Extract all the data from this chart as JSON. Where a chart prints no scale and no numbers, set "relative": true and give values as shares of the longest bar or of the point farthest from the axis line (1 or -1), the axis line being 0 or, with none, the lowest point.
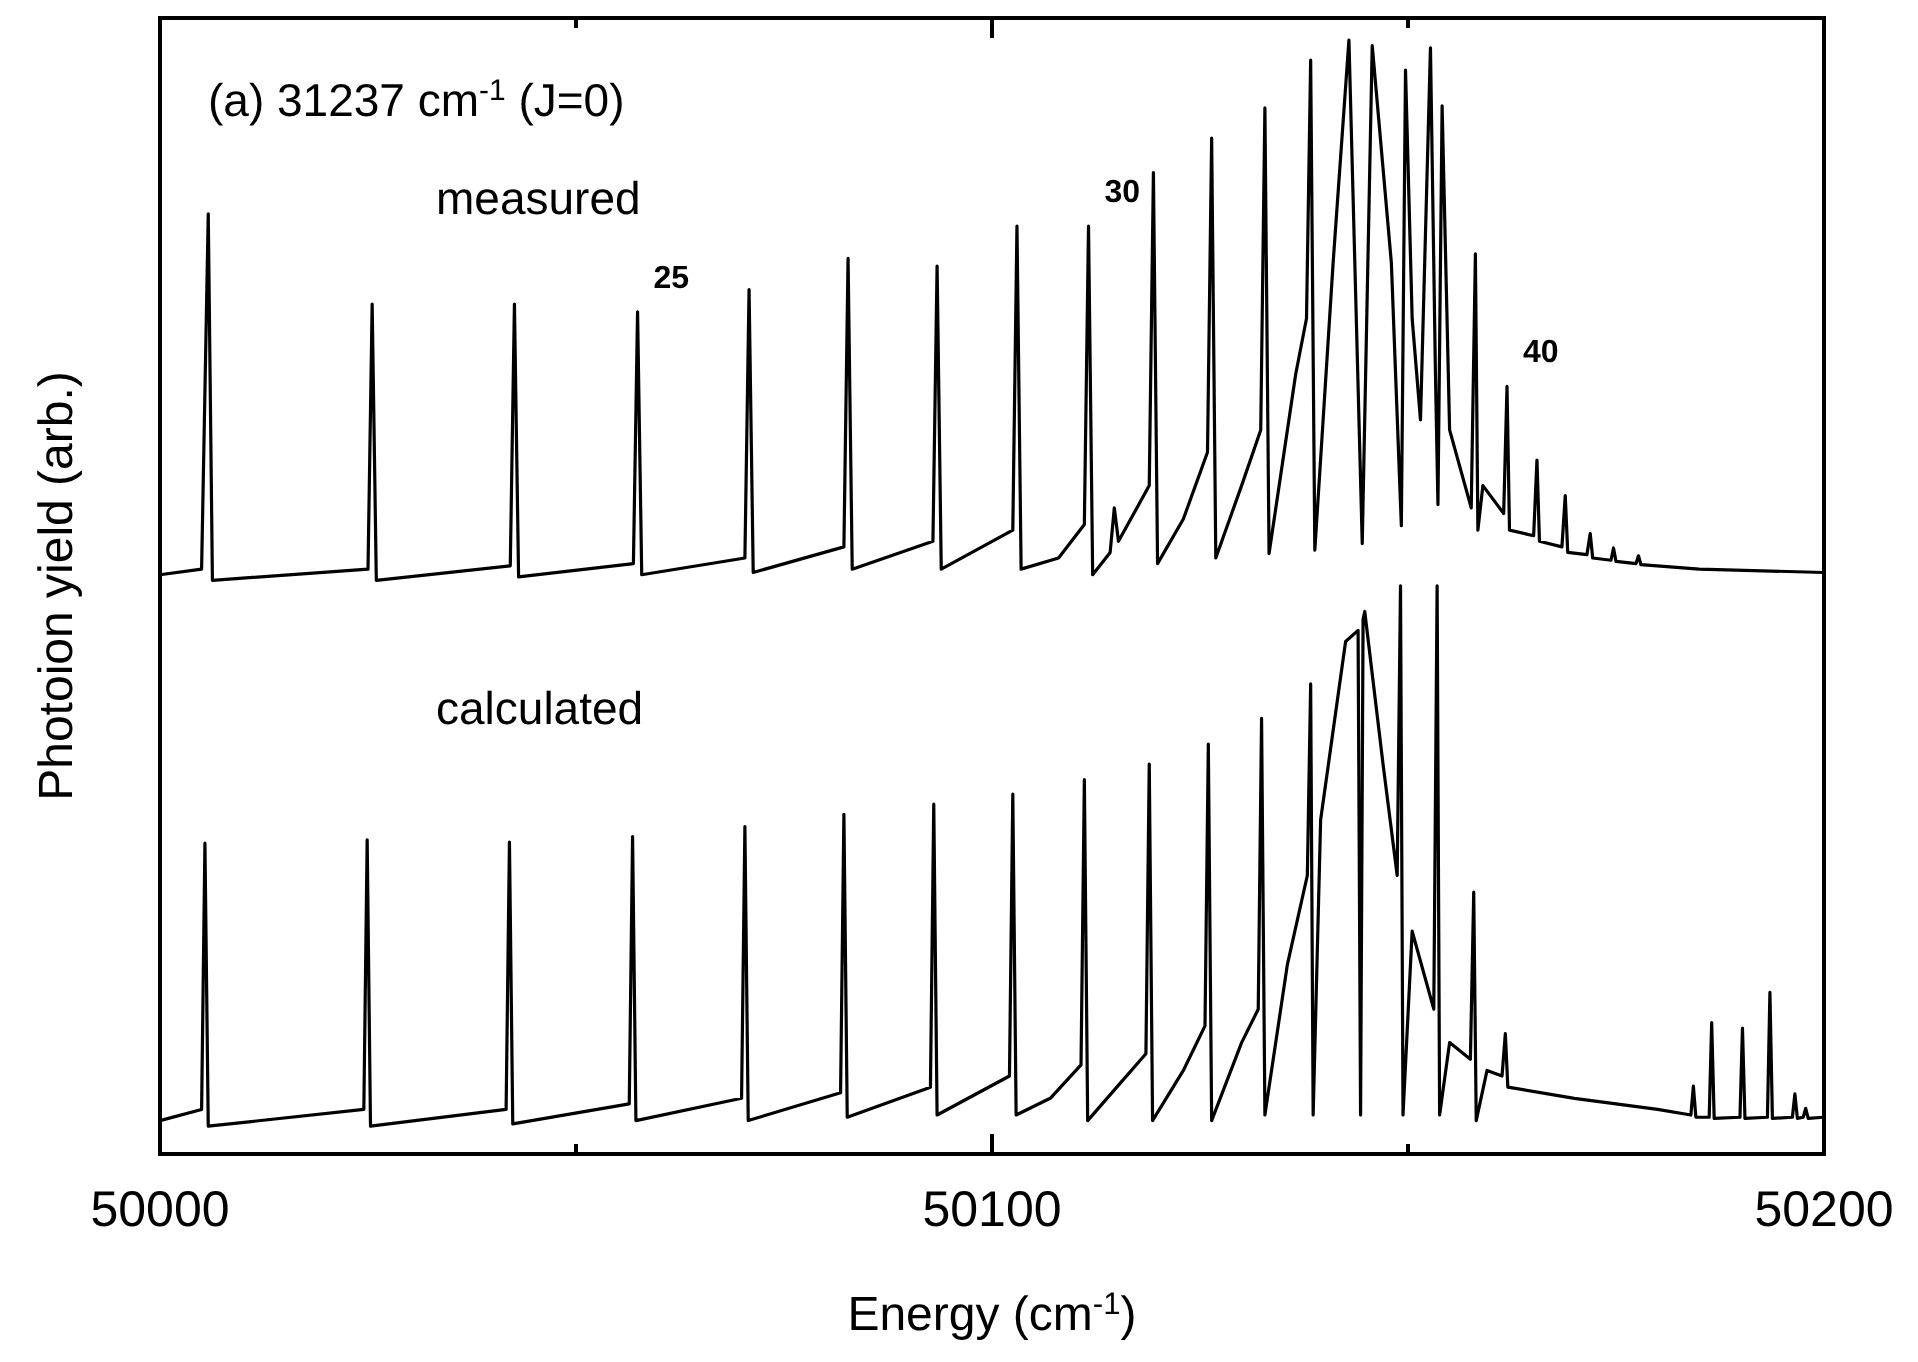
{
  "chart_data": {
    "type": "line",
    "relative": true,
    "xlabel": "Energy (cm$^{-1}$)",
    "ylabel": "Photoion yield (arb.)",
    "xlim": [
      50000,
      50200
    ],
    "xticks": [
      50000,
      {
        "value": 50050,
        "label": null
      },
      50100,
      {
        "value": 50150,
        "label": null
      },
      50200
    ],
    "grid": false,
    "line_style": "solid",
    "annotations": [
      "(a) 31237 cm$^{-1}$ (J=0)",
      {
        "text": "25",
        "x": 50057.4,
        "y": 0.756
      },
      {
        "text": "30",
        "x": 50111.6,
        "y": 0.833
      },
      {
        "text": "40",
        "x": 50161.9,
        "y": 0.689
      }
    ],
    "series": [
      {
        "name": "measured",
        "color": "#000000",
        "x": [
          50000,
          50005.0,
          50005.8,
          50006.3,
          50025.0,
          50025.5,
          50026.0,
          50042.1,
          50042.6,
          50043.1,
          50056.9,
          50057.4,
          50057.9,
          50070.3,
          50070.8,
          50071.3,
          50082.2,
          50082.7,
          50083.2,
          50092.9,
          50093.4,
          50093.9,
          50102.5,
          50103.0,
          50103.5,
          50108,
          50111.1,
          50111.6,
          50112.1,
          50114.2,
          50114.7,
          50115.2,
          50118.9,
          50119.4,
          50119.9,
          50123,
          50125.9,
          50126.4,
          50126.9,
          50130,
          50132.3,
          50132.8,
          50133.3,
          50136.5,
          50137.8,
          50138.3,
          50138.8,
          50141,
          50142.9,
          50144.5,
          50145.7,
          50148,
          50149.2,
          50149.7,
          50150.5,
          50151.5,
          50152.7,
          50153.3,
          50153.6,
          50154.1,
          50155,
          50157.6,
          50158.1,
          50158.4,
          50159,
          50161.5,
          50161.9,
          50162.2,
          50165.1,
          50165.5,
          50165.8,
          50168.5,
          50168.9,
          50169.2,
          50171.5,
          50171.9,
          50172.2,
          50174.4,
          50174.7,
          50175,
          50177.4,
          50177.7,
          50178,
          50185,
          50200
        ],
        "values": [
          0.52,
          0.525,
          0.844,
          0.515,
          0.525,
          0.763,
          0.515,
          0.528,
          0.763,
          0.518,
          0.53,
          0.756,
          0.52,
          0.535,
          0.776,
          0.522,
          0.545,
          0.804,
          0.525,
          0.55,
          0.797,
          0.525,
          0.56,
          0.833,
          0.525,
          0.535,
          0.565,
          0.833,
          0.52,
          0.54,
          0.58,
          0.55,
          0.6,
          0.881,
          0.53,
          0.57,
          0.63,
          0.912,
          0.535,
          0.6,
          0.65,
          0.939,
          0.539,
          0.7,
          0.75,
          0.982,
          0.542,
          0.8,
          1.0,
          0.548,
          0.995,
          0.8,
          0.564,
          0.973,
          0.75,
          0.659,
          0.993,
          0.7,
          0.583,
          0.941,
          0.65,
          0.58,
          0.808,
          0.56,
          0.6,
          0.575,
          0.689,
          0.56,
          0.555,
          0.623,
          0.55,
          0.545,
          0.591,
          0.54,
          0.538,
          0.557,
          0.535,
          0.533,
          0.544,
          0.532,
          0.53,
          0.537,
          0.529,
          0.525,
          0.522
        ]
      },
      {
        "name": "calculated",
        "color": "#000000",
        "x": [
          50000,
          50005.0,
          50005.4,
          50005.8,
          50024.5,
          50024.9,
          50025.3,
          50041.6,
          50042.0,
          50042.4,
          50056.4,
          50056.8,
          50057.2,
          50069.9,
          50070.3,
          50070.7,
          50081.8,
          50082.2,
          50082.6,
          50092.6,
          50093.0,
          50093.4,
          50102.1,
          50102.5,
          50102.9,
          50107,
          50110.7,
          50111.1,
          50111.5,
          50115,
          50118.5,
          50118.9,
          50119.3,
          50123,
          50125.6,
          50126.0,
          50126.4,
          50130,
          50132.0,
          50132.4,
          50132.8,
          50135.5,
          50137.9,
          50138.3,
          50138.6,
          50139.5,
          50142.5,
          50144.0,
          50144.3,
          50144.6,
          50144.8,
          50147,
          50148.7,
          50149.1,
          50149.4,
          50150.5,
          50153.1,
          50153.5,
          50153.8,
          50155,
          50157.5,
          50157.9,
          50158.2,
          50159.5,
          50161.3,
          50161.7,
          50162,
          50170,
          50180,
          50184,
          50184.3,
          50184.6,
          50186.2,
          50186.5,
          50186.8,
          50189.9,
          50190.2,
          50190.5,
          50193.2,
          50193.5,
          50193.8,
          50196.2,
          50196.5,
          50196.8,
          50197.5,
          50197.8,
          50198.1,
          50200
        ],
        "values": [
          0.03,
          0.04,
          0.279,
          0.025,
          0.04,
          0.282,
          0.025,
          0.04,
          0.28,
          0.027,
          0.045,
          0.285,
          0.03,
          0.05,
          0.294,
          0.03,
          0.055,
          0.305,
          0.033,
          0.06,
          0.314,
          0.035,
          0.07,
          0.323,
          0.035,
          0.05,
          0.08,
          0.336,
          0.03,
          0.06,
          0.09,
          0.35,
          0.03,
          0.075,
          0.115,
          0.368,
          0.03,
          0.1,
          0.13,
          0.391,
          0.035,
          0.17,
          0.25,
          0.422,
          0.035,
          0.3,
          0.46,
          0.47,
          0.035,
          0.48,
          0.487,
          0.35,
          0.25,
          0.51,
          0.035,
          0.2,
          0.13,
          0.51,
          0.035,
          0.1,
          0.085,
          0.235,
          0.03,
          0.075,
          0.07,
          0.108,
          0.06,
          0.05,
          0.04,
          0.035,
          0.061,
          0.033,
          0.033,
          0.118,
          0.032,
          0.033,
          0.113,
          0.032,
          0.033,
          0.145,
          0.032,
          0.033,
          0.054,
          0.032,
          0.033,
          0.041,
          0.032,
          0.033
        ]
      }
    ]
  }
}
